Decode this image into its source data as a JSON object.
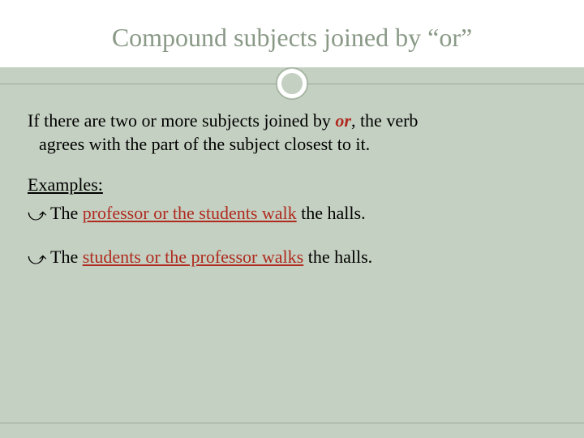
{
  "colors": {
    "background": "#c4d0c1",
    "title_bg": "#ffffff",
    "title_text": "#8a9a87",
    "line": "#9aa998",
    "accent_red": "#b02a1f",
    "body_text": "#000000"
  },
  "typography": {
    "title_fontsize": 32,
    "body_fontsize": 22,
    "font_family": "Georgia"
  },
  "title": "Compound subjects joined by “or”",
  "rule": {
    "line1_pre": "If there are two or more subjects joined by ",
    "or": "or",
    "line1_post": ", the verb",
    "line2": "agrees with the part of the subject closest to it."
  },
  "examples_label": "Examples:",
  "examples": [
    {
      "pre": "The ",
      "underlined": "professor or the students walk",
      "post": " the halls."
    },
    {
      "pre": "The ",
      "underlined": "students or the professor walks",
      "post": " the halls."
    }
  ]
}
